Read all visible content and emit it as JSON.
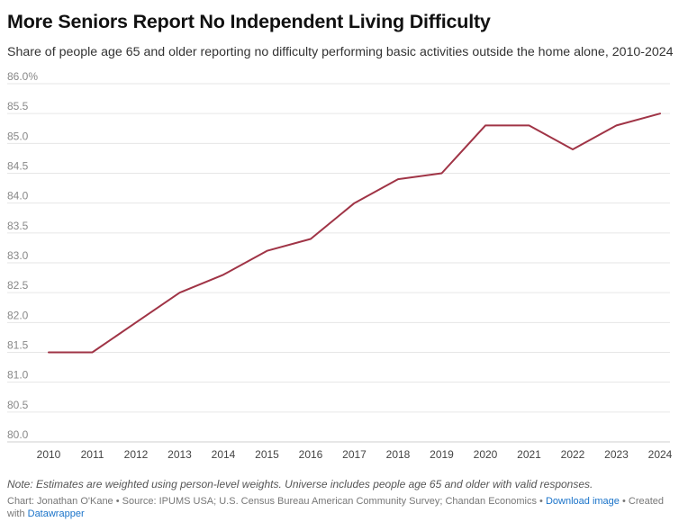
{
  "header": {
    "title": "More Seniors Report No Independent Living Difficulty",
    "subtitle": "Share of people age 65 and older reporting no difficulty performing basic activities outside the home alone, 2010-2024"
  },
  "chart_data": {
    "type": "line",
    "title": "More Seniors Report No Independent Living Difficulty",
    "subtitle": "Share of people age 65 and older reporting no difficulty performing basic activities outside the home alone, 2010-2024",
    "x": [
      2010,
      2011,
      2012,
      2013,
      2014,
      2015,
      2016,
      2017,
      2018,
      2019,
      2020,
      2021,
      2022,
      2023,
      2024
    ],
    "series": [
      {
        "values": [
          81.5,
          81.5,
          82.0,
          82.5,
          82.8,
          83.2,
          83.4,
          84.0,
          84.4,
          84.5,
          85.3,
          85.3,
          84.9,
          85.3,
          85.5
        ]
      }
    ],
    "ylim": [
      80.0,
      86.0
    ],
    "y_ticks": [
      "80.0",
      "80.5",
      "81.0",
      "81.5",
      "82.0",
      "82.5",
      "83.0",
      "83.5",
      "84.0",
      "84.5",
      "85.0",
      "85.5",
      "86.0%"
    ],
    "x_ticks": [
      "2010",
      "2011",
      "2012",
      "2013",
      "2014",
      "2015",
      "2016",
      "2017",
      "2018",
      "2019",
      "2020",
      "2021",
      "2022",
      "2023",
      "2024"
    ],
    "grid": true,
    "line_color": "#a03446"
  },
  "footer": {
    "note": "Note: Estimates are weighted using person-level weights. Universe includes people age 65 and older with valid responses.",
    "credit": "Chart: Jonathan O'Kane • Source: IPUMS USA; U.S. Census Bureau American Community Survey; Chandan Economics •",
    "download_label": "Download image",
    "created_with": "• Created with",
    "datawrapper_label": "Datawrapper"
  }
}
